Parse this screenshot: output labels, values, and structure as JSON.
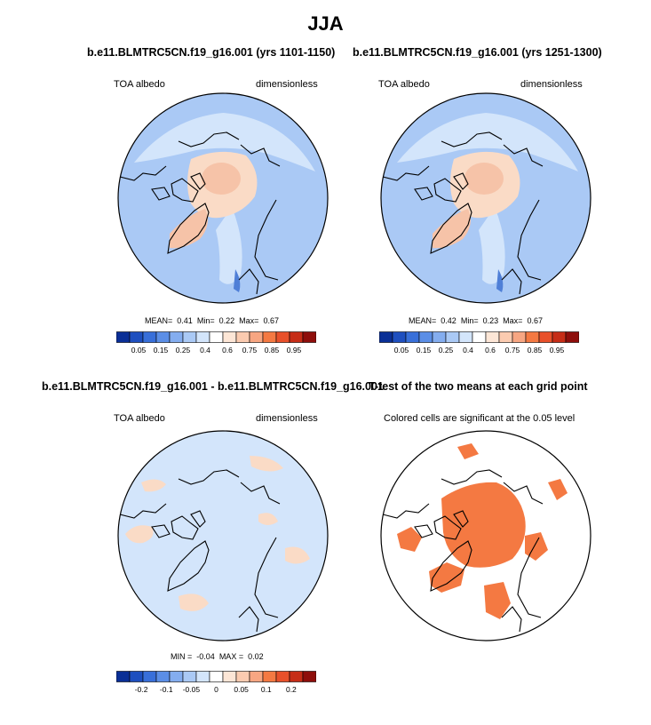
{
  "figure": {
    "title": "JJA",
    "colors": {
      "ocean_blue": "#aac9f5",
      "light_blue": "#d3e5fb",
      "mid_blue": "#8db4ee",
      "dark_blue": "#4f7fd7",
      "peach": "#fadbc6",
      "salmon": "#f6c3a8",
      "significant": "#f47942"
    }
  },
  "panels": [
    {
      "title": "b.e11.BLMTRC5CN.f19_g16.001 (yrs 1101-1150)",
      "left_label": "TOA albedo",
      "right_label": "dimensionless",
      "stats": {
        "mean_label": "MEAN=",
        "mean": "0.41",
        "min_label": "Min=",
        "min": "0.22",
        "max_label": "Max=",
        "max": "0.67"
      }
    },
    {
      "title": "b.e11.BLMTRC5CN.f19_g16.001 (yrs 1251-1300)",
      "left_label": "TOA albedo",
      "right_label": "dimensionless",
      "stats": {
        "mean_label": "MEAN=",
        "mean": "0.42",
        "min_label": "Min=",
        "min": "0.23",
        "max_label": "Max=",
        "max": "0.67"
      }
    },
    {
      "title": "b.e11.BLMTRC5CN.f19_g16.001 - b.e11.BLMTRC5CN.f19_g16.001",
      "left_label": "TOA albedo",
      "right_label": "dimensionless",
      "stats": {
        "min_label": "MIN =",
        "min": "-0.04",
        "max_label": "MAX =",
        "max": "0.02"
      }
    },
    {
      "title": "T-test of the two means at each grid point",
      "subtitle": "Colored cells are significant at the 0.05 level"
    }
  ],
  "chart_data": [
    {
      "type": "heatmap",
      "projection": "north polar stereographic",
      "variable": "TOA albedo",
      "units": "dimensionless",
      "period": "yrs 1101-1150",
      "season": "JJA",
      "mean": 0.41,
      "min": 0.22,
      "max": 0.67,
      "colorbar": {
        "colors": [
          "#0a2f96",
          "#1e4fbf",
          "#386fd9",
          "#5b8ee6",
          "#84adef",
          "#aac9f5",
          "#d3e5fb",
          "#ffffff",
          "#fde6d6",
          "#fbcbb0",
          "#f7a682",
          "#f47942",
          "#e8502a",
          "#c62d17",
          "#8e0e0b"
        ],
        "tick_labels": [
          "0.05",
          "0.15",
          "0.25",
          "0.4",
          "0.6",
          "0.75",
          "0.85",
          "0.95"
        ]
      }
    },
    {
      "type": "heatmap",
      "projection": "north polar stereographic",
      "variable": "TOA albedo",
      "units": "dimensionless",
      "period": "yrs 1251-1300",
      "season": "JJA",
      "mean": 0.42,
      "min": 0.23,
      "max": 0.67,
      "colorbar": {
        "colors": [
          "#0a2f96",
          "#1e4fbf",
          "#386fd9",
          "#5b8ee6",
          "#84adef",
          "#aac9f5",
          "#d3e5fb",
          "#ffffff",
          "#fde6d6",
          "#fbcbb0",
          "#f7a682",
          "#f47942",
          "#e8502a",
          "#c62d17",
          "#8e0e0b"
        ],
        "tick_labels": [
          "0.05",
          "0.15",
          "0.25",
          "0.4",
          "0.6",
          "0.75",
          "0.85",
          "0.95"
        ]
      }
    },
    {
      "type": "heatmap",
      "projection": "north polar stereographic",
      "variable": "TOA albedo difference",
      "units": "dimensionless",
      "season": "JJA",
      "min": -0.04,
      "max": 0.02,
      "colorbar": {
        "colors": [
          "#0a2f96",
          "#1e4fbf",
          "#386fd9",
          "#5b8ee6",
          "#84adef",
          "#aac9f5",
          "#d3e5fb",
          "#ffffff",
          "#fde6d6",
          "#fbcbb0",
          "#f7a682",
          "#f47942",
          "#e8502a",
          "#c62d17",
          "#8e0e0b"
        ],
        "tick_labels": [
          "-0.2",
          "-0.1",
          "-0.05",
          "0",
          "0.05",
          "0.1",
          "0.2"
        ]
      }
    },
    {
      "type": "heatmap",
      "projection": "north polar stereographic",
      "description": "significance mask",
      "significance_level": 0.05
    }
  ]
}
